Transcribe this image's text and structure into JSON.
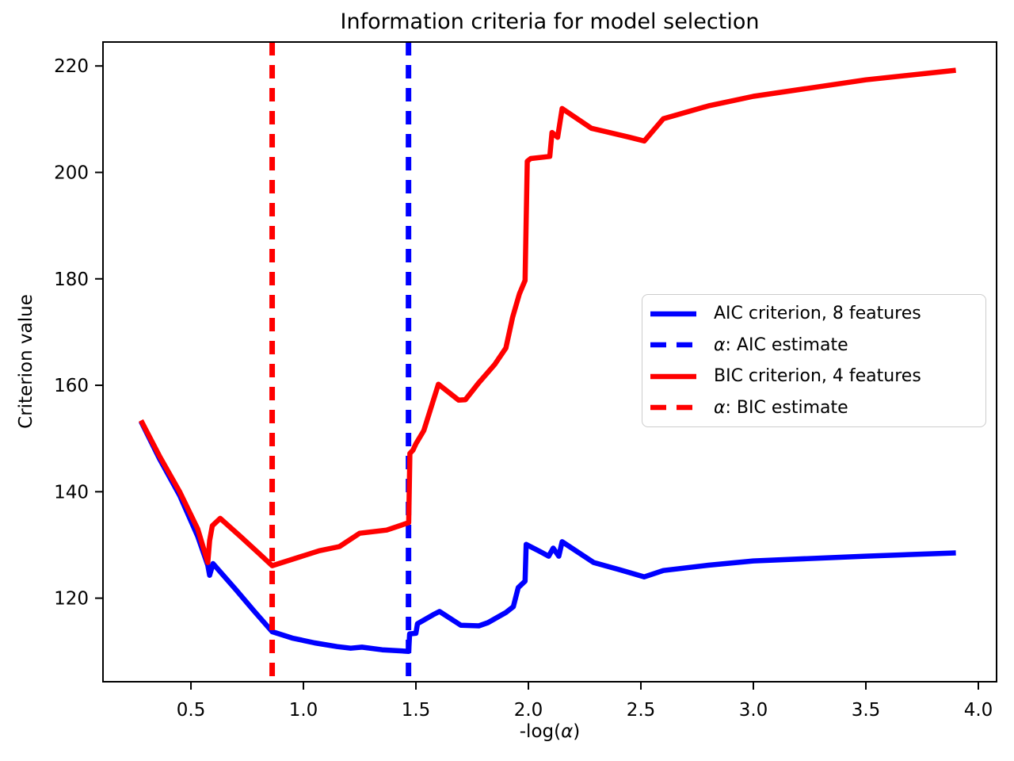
{
  "figure": {
    "background": "#ffffff",
    "spine_color": "#000000"
  },
  "chart_data": {
    "type": "line",
    "title": "Information criteria for model selection",
    "xlabel": "-log(α)",
    "ylabel": "Criterion value",
    "xlim": [
      0.109,
      4.081
    ],
    "ylim": [
      104.3,
      224.5
    ],
    "grid": false,
    "legend_position": "center right",
    "xticks": [
      "0.5",
      "1.0",
      "1.5",
      "2.0",
      "2.5",
      "3.0",
      "3.5",
      "4.0"
    ],
    "yticks": [
      "120",
      "140",
      "160",
      "180",
      "200",
      "220"
    ],
    "series": [
      {
        "name": "AIC criterion, 8 features",
        "kind": "line",
        "color": "#0000ff",
        "linestyle": "solid",
        "points": [
          [
            0.278,
            153.2
          ],
          [
            0.36,
            146.2
          ],
          [
            0.45,
            139.3
          ],
          [
            0.53,
            131.6
          ],
          [
            0.575,
            126.2
          ],
          [
            0.583,
            124.3
          ],
          [
            0.598,
            126.5
          ],
          [
            0.7,
            121.6
          ],
          [
            0.78,
            117.6
          ],
          [
            0.861,
            113.7
          ],
          [
            0.95,
            112.5
          ],
          [
            1.05,
            111.6
          ],
          [
            1.15,
            110.9
          ],
          [
            1.21,
            110.6
          ],
          [
            1.26,
            110.8
          ],
          [
            1.35,
            110.3
          ],
          [
            1.468,
            110.0
          ],
          [
            1.472,
            113.3
          ],
          [
            1.5,
            113.4
          ],
          [
            1.507,
            115.2
          ],
          [
            1.577,
            116.9
          ],
          [
            1.605,
            117.5
          ],
          [
            1.7,
            114.9
          ],
          [
            1.78,
            114.8
          ],
          [
            1.82,
            115.4
          ],
          [
            1.9,
            117.3
          ],
          [
            1.933,
            118.4
          ],
          [
            1.955,
            122.0
          ],
          [
            1.985,
            123.2
          ],
          [
            1.99,
            130.1
          ],
          [
            2.05,
            128.8
          ],
          [
            2.09,
            127.9
          ],
          [
            2.11,
            129.4
          ],
          [
            2.135,
            127.9
          ],
          [
            2.15,
            130.6
          ],
          [
            2.29,
            126.7
          ],
          [
            2.4,
            125.4
          ],
          [
            2.515,
            124.0
          ],
          [
            2.6,
            125.2
          ],
          [
            2.8,
            126.2
          ],
          [
            3.0,
            127.0
          ],
          [
            3.5,
            127.9
          ],
          [
            3.9,
            128.5
          ]
        ]
      },
      {
        "name": "α: AIC estimate",
        "kind": "vline",
        "color": "#0000ff",
        "linestyle": "dashed",
        "x": 1.467
      },
      {
        "name": "BIC criterion, 4 features",
        "kind": "line",
        "color": "#ff0000",
        "linestyle": "solid",
        "points": [
          [
            0.278,
            153.4
          ],
          [
            0.36,
            146.7
          ],
          [
            0.45,
            140.0
          ],
          [
            0.53,
            133.0
          ],
          [
            0.575,
            126.7
          ],
          [
            0.583,
            130.8
          ],
          [
            0.595,
            133.6
          ],
          [
            0.63,
            135.0
          ],
          [
            0.72,
            131.6
          ],
          [
            0.8,
            128.5
          ],
          [
            0.861,
            126.1
          ],
          [
            0.95,
            127.3
          ],
          [
            1.07,
            128.9
          ],
          [
            1.16,
            129.7
          ],
          [
            1.25,
            132.2
          ],
          [
            1.37,
            132.8
          ],
          [
            1.468,
            134.2
          ],
          [
            1.473,
            147.2
          ],
          [
            1.487,
            147.8
          ],
          [
            1.5,
            149.0
          ],
          [
            1.535,
            151.5
          ],
          [
            1.6,
            160.2
          ],
          [
            1.69,
            157.2
          ],
          [
            1.72,
            157.3
          ],
          [
            1.78,
            160.5
          ],
          [
            1.85,
            163.9
          ],
          [
            1.9,
            167.0
          ],
          [
            1.93,
            172.8
          ],
          [
            1.96,
            177.2
          ],
          [
            1.985,
            179.7
          ],
          [
            1.995,
            202.1
          ],
          [
            2.01,
            202.6
          ],
          [
            2.095,
            203.0
          ],
          [
            2.105,
            207.5
          ],
          [
            2.13,
            206.6
          ],
          [
            2.15,
            212.0
          ],
          [
            2.28,
            208.3
          ],
          [
            2.45,
            206.6
          ],
          [
            2.515,
            205.9
          ],
          [
            2.6,
            210.1
          ],
          [
            2.8,
            212.5
          ],
          [
            3.0,
            214.3
          ],
          [
            3.5,
            217.4
          ],
          [
            3.9,
            219.2
          ]
        ]
      },
      {
        "name": "α: BIC estimate",
        "kind": "vline",
        "color": "#ff0000",
        "linestyle": "dashed",
        "x": 0.861
      }
    ]
  }
}
